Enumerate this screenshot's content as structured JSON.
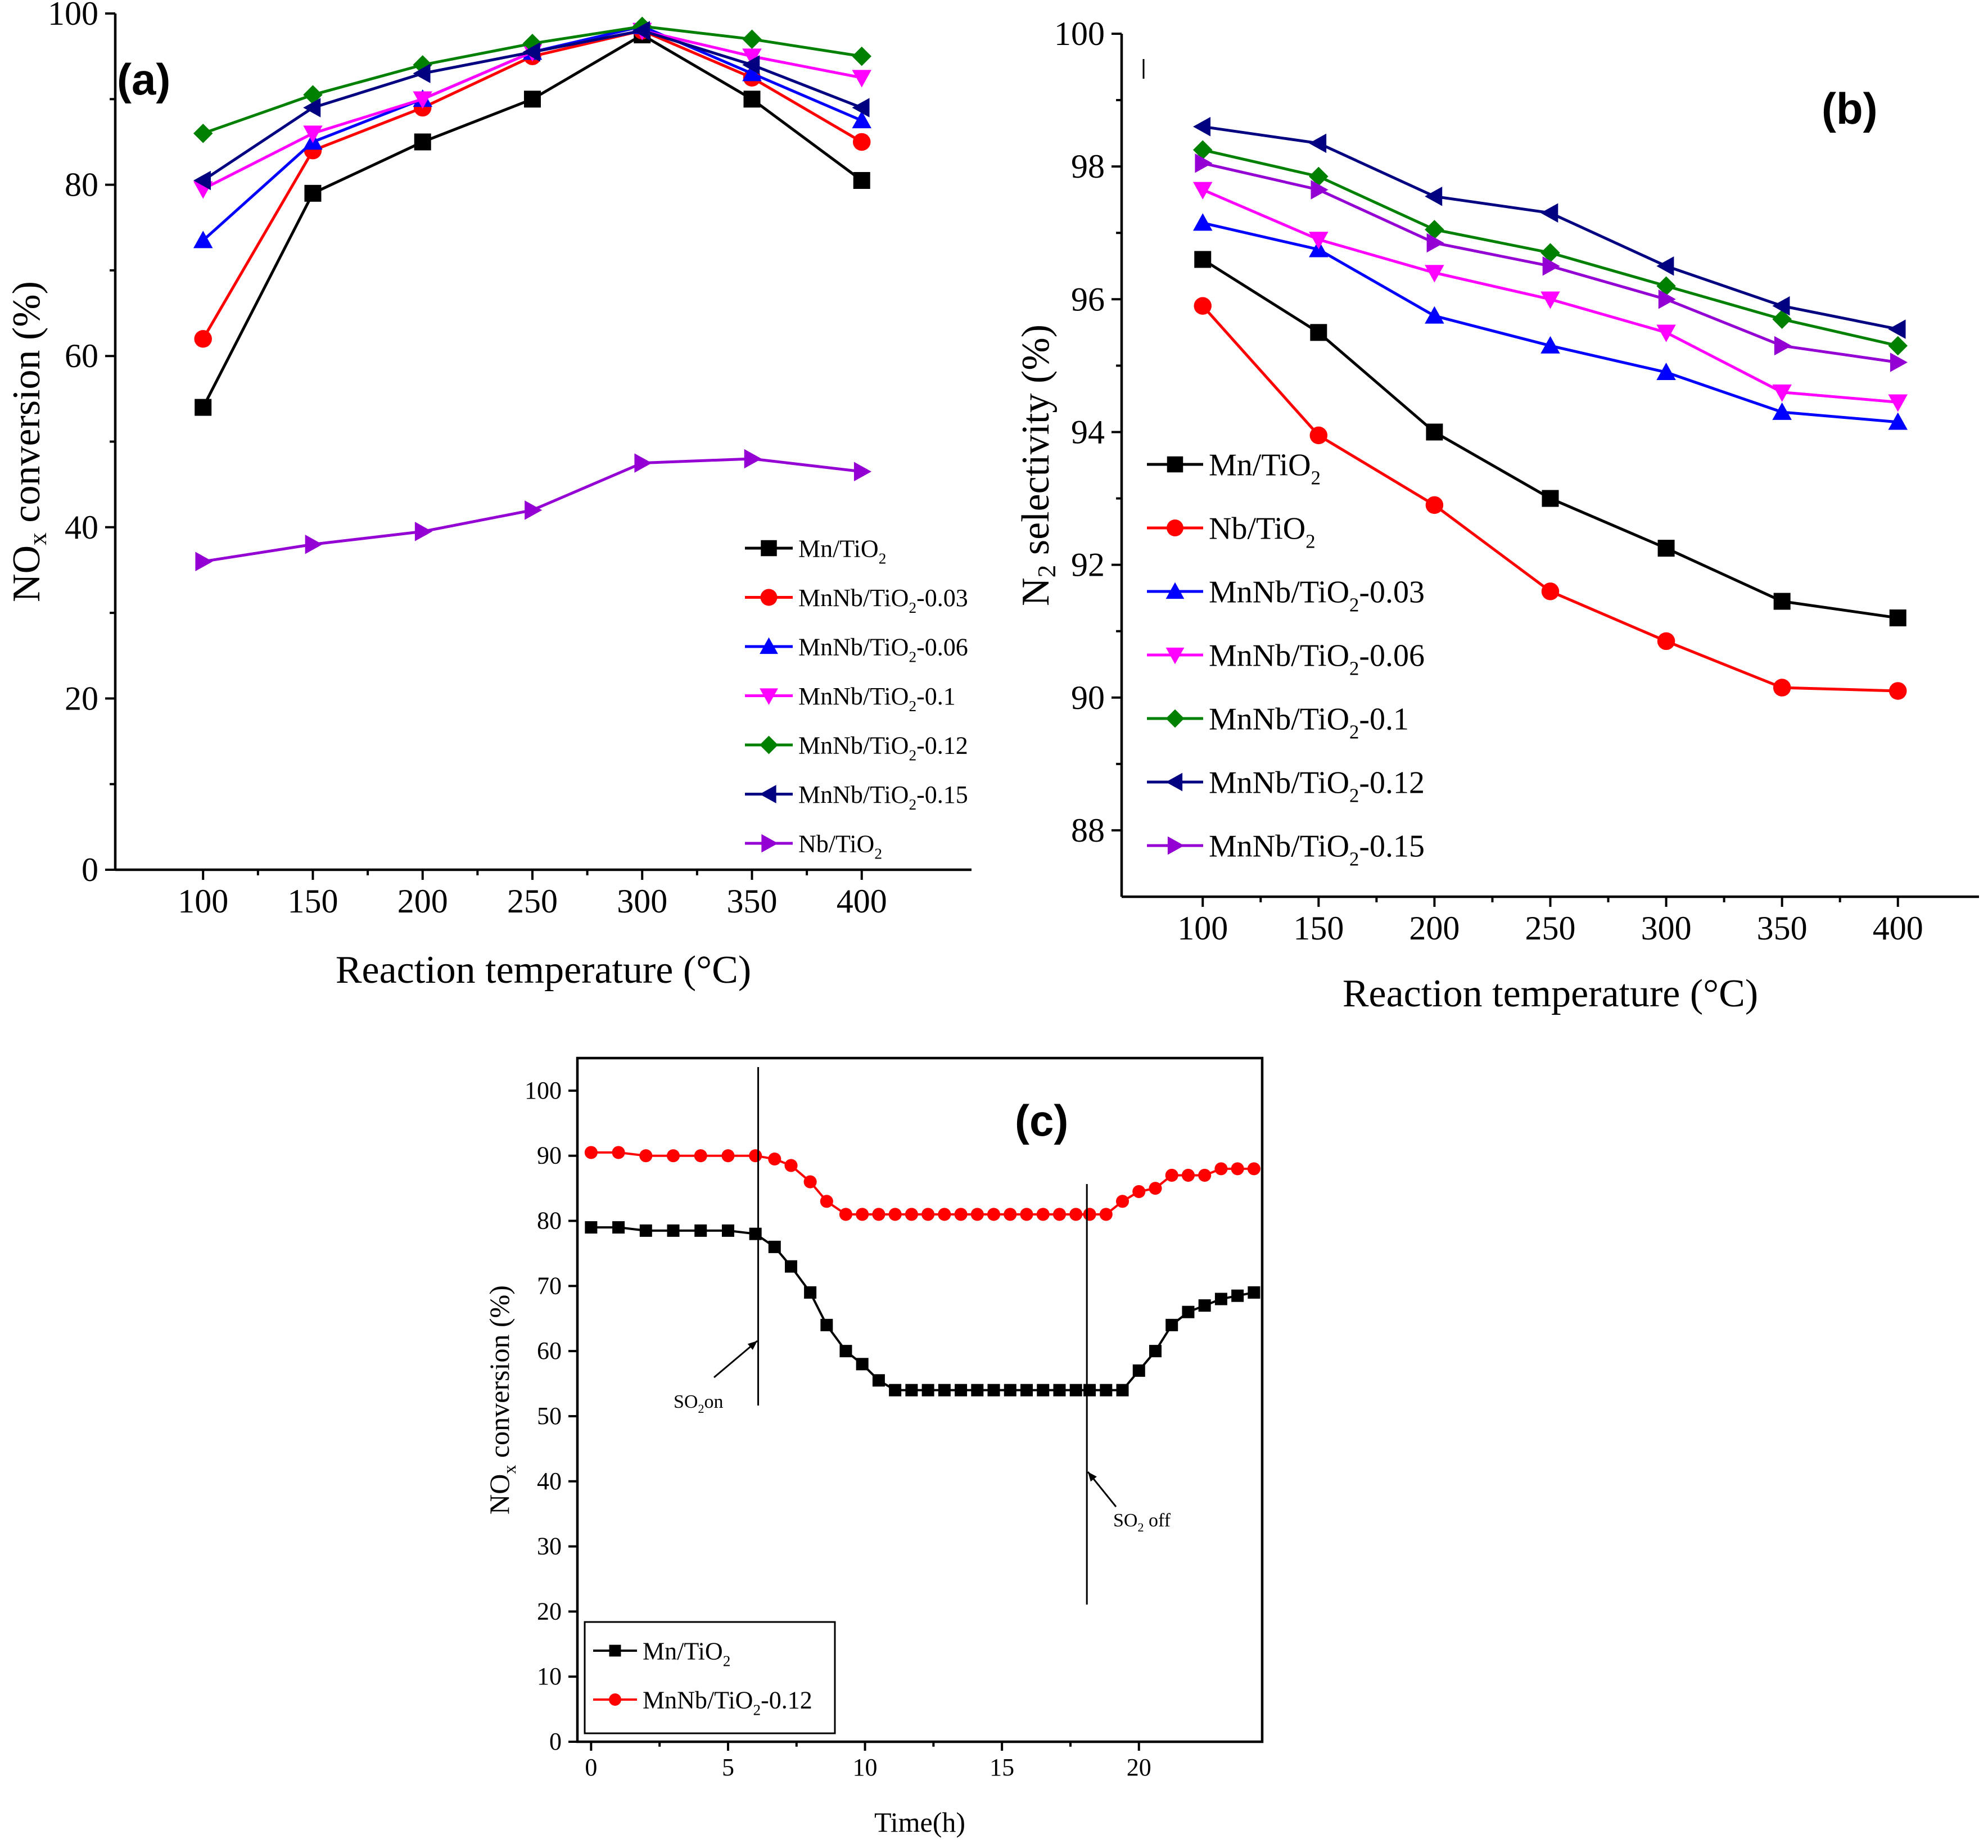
{
  "chart_data": [
    {
      "id": "a",
      "type": "line",
      "panel_label": "(a)",
      "xlabel": "Reaction temperature (°C)",
      "ylabel": "NOx conversion (%)",
      "xlim": [
        60,
        450
      ],
      "ylim": [
        0,
        100
      ],
      "xticks": [
        100,
        150,
        200,
        250,
        300,
        350,
        400
      ],
      "yticks": [
        0,
        20,
        40,
        60,
        80,
        100
      ],
      "x": [
        100,
        150,
        200,
        250,
        300,
        350,
        400
      ],
      "series": [
        {
          "name": "Mn/TiO2",
          "label": "Mn/TiO",
          "sub": "2",
          "suffix": "",
          "color": "#000000",
          "marker": "square",
          "values": [
            54,
            79,
            85,
            90,
            97.5,
            90,
            80.5
          ]
        },
        {
          "name": "MnNb/TiO2-0.03",
          "label": "MnNb/TiO",
          "sub": "2",
          "suffix": "-0.03",
          "color": "#ff0000",
          "marker": "circle",
          "values": [
            62,
            84,
            89,
            95,
            98,
            92.5,
            85
          ]
        },
        {
          "name": "MnNb/TiO2-0.06",
          "label": "MnNb/TiO",
          "sub": "2",
          "suffix": "-0.06",
          "color": "#0000ff",
          "marker": "triangle-up",
          "values": [
            73.5,
            85,
            90,
            95.5,
            98.5,
            93,
            87.5
          ]
        },
        {
          "name": "MnNb/TiO2-0.1",
          "label": "MnNb/TiO",
          "sub": "2",
          "suffix": "-0.1",
          "color": "#ff00ff",
          "marker": "triangle-down",
          "values": [
            79.5,
            86,
            90,
            95.5,
            98,
            95,
            92.5
          ]
        },
        {
          "name": "MnNb/TiO2-0.12",
          "label": "MnNb/TiO",
          "sub": "2",
          "suffix": "-0.12",
          "color": "#008000",
          "marker": "diamond",
          "values": [
            86,
            90.5,
            94,
            96.5,
            98.5,
            97,
            95
          ]
        },
        {
          "name": "MnNb/TiO2-0.15",
          "label": "MnNb/TiO",
          "sub": "2",
          "suffix": "-0.15",
          "color": "#000080",
          "marker": "triangle-left",
          "values": [
            80.5,
            89,
            93,
            95.5,
            98,
            94,
            89
          ]
        },
        {
          "name": "Nb/TiO2",
          "label": "Nb/TiO",
          "sub": "2",
          "suffix": "",
          "color": "#9400d3",
          "marker": "triangle-right",
          "values": [
            36,
            38,
            39.5,
            42,
            47.5,
            48,
            46.5
          ]
        }
      ]
    },
    {
      "id": "b",
      "type": "line",
      "panel_label": "(b)",
      "xlabel": "Reaction temperature (°C)",
      "ylabel": "N2 selectivity (%)",
      "xlim": [
        65,
        435
      ],
      "ylim": [
        87,
        100
      ],
      "xticks": [
        100,
        150,
        200,
        250,
        300,
        350,
        400
      ],
      "yticks": [
        88,
        90,
        92,
        94,
        96,
        98,
        100
      ],
      "x": [
        100,
        150,
        200,
        250,
        300,
        350,
        400
      ],
      "series": [
        {
          "name": "Mn/TiO2",
          "label": "Mn/TiO",
          "sub": "2",
          "suffix": "",
          "color": "#000000",
          "marker": "square",
          "values": [
            96.6,
            95.5,
            94.0,
            93.0,
            92.25,
            91.45,
            91.2
          ]
        },
        {
          "name": "Nb/TiO2",
          "label": "Nb/TiO",
          "sub": "2",
          "suffix": "",
          "color": "#ff0000",
          "marker": "circle",
          "values": [
            95.9,
            93.95,
            92.9,
            91.6,
            90.85,
            90.15,
            90.1
          ]
        },
        {
          "name": "MnNb/TiO2-0.03",
          "label": "MnNb/TiO",
          "sub": "2",
          "suffix": "-0.03",
          "color": "#0000ff",
          "marker": "triangle-up",
          "values": [
            97.15,
            96.75,
            95.75,
            95.3,
            94.9,
            94.3,
            94.15
          ]
        },
        {
          "name": "MnNb/TiO2-0.06",
          "label": "MnNb/TiO",
          "sub": "2",
          "suffix": "-0.06",
          "color": "#ff00ff",
          "marker": "triangle-down",
          "values": [
            97.65,
            96.9,
            96.4,
            96.0,
            95.5,
            94.6,
            94.45
          ]
        },
        {
          "name": "MnNb/TiO2-0.1",
          "label": "MnNb/TiO",
          "sub": "2",
          "suffix": "-0.1",
          "color": "#008000",
          "marker": "diamond",
          "values": [
            98.25,
            97.85,
            97.05,
            96.7,
            96.2,
            95.7,
            95.3
          ]
        },
        {
          "name": "MnNb/TiO2-0.12",
          "label": "MnNb/TiO",
          "sub": "2",
          "suffix": "-0.12",
          "color": "#000080",
          "marker": "triangle-left",
          "values": [
            98.6,
            98.35,
            97.55,
            97.3,
            96.5,
            95.9,
            95.55
          ]
        },
        {
          "name": "MnNb/TiO2-0.15",
          "label": "MnNb/TiO",
          "sub": "2",
          "suffix": "-0.15",
          "color": "#9400d3",
          "marker": "triangle-right",
          "values": [
            98.05,
            97.65,
            96.85,
            96.5,
            96.0,
            95.3,
            95.05
          ]
        }
      ]
    },
    {
      "id": "c",
      "type": "line",
      "panel_label": "(c)",
      "xlabel": "Time(h)",
      "ylabel": "NOx conversion (%)",
      "xlim": [
        -0.5,
        24.5
      ],
      "ylim": [
        0,
        105
      ],
      "xticks": [
        0,
        5,
        10,
        15,
        20
      ],
      "yticks": [
        0,
        10,
        20,
        30,
        40,
        50,
        60,
        70,
        80,
        90,
        100
      ],
      "annotations": [
        {
          "text_main": "SO",
          "text_sub": "2",
          "text_suffix": "on",
          "x_at": 6.1
        },
        {
          "text_main": "SO",
          "text_sub": "2",
          "text_suffix": " off",
          "x_at": 18.1
        }
      ],
      "series": [
        {
          "name": "Mn/TiO2",
          "label": "Mn/TiO",
          "sub": "2",
          "suffix": "",
          "color": "#000000",
          "marker": "square",
          "x": [
            0,
            1,
            2,
            3,
            4,
            5,
            6,
            6.7,
            7.3,
            8,
            8.6,
            9.3,
            9.9,
            10.5,
            11.1,
            11.7,
            12.3,
            12.9,
            13.5,
            14.1,
            14.7,
            15.3,
            15.9,
            16.5,
            17.1,
            17.7,
            18.2,
            18.8,
            19.4,
            20,
            20.6,
            21.2,
            21.8,
            22.4,
            23,
            23.6,
            24.2
          ],
          "values": [
            79,
            79,
            78.5,
            78.5,
            78.5,
            78.5,
            78,
            76,
            73,
            69,
            64,
            60,
            58,
            55.5,
            54,
            54,
            54,
            54,
            54,
            54,
            54,
            54,
            54,
            54,
            54,
            54,
            54,
            54,
            54,
            57,
            60,
            64,
            66,
            67,
            68,
            68.5,
            69
          ]
        },
        {
          "name": "MnNb/TiO2-0.12",
          "label": "MnNb/TiO",
          "sub": "2",
          "suffix": "-0.12",
          "color": "#ff0000",
          "marker": "circle",
          "x": [
            0,
            1,
            2,
            3,
            4,
            5,
            6,
            6.7,
            7.3,
            8,
            8.6,
            9.3,
            9.9,
            10.5,
            11.1,
            11.7,
            12.3,
            12.9,
            13.5,
            14.1,
            14.7,
            15.3,
            15.9,
            16.5,
            17.1,
            17.7,
            18.2,
            18.8,
            19.4,
            20,
            20.6,
            21.2,
            21.8,
            22.4,
            23,
            23.6,
            24.2
          ],
          "values": [
            90.5,
            90.5,
            90,
            90,
            90,
            90,
            90,
            89.5,
            88.5,
            86,
            83,
            81,
            81,
            81,
            81,
            81,
            81,
            81,
            81,
            81,
            81,
            81,
            81,
            81,
            81,
            81,
            81,
            81,
            83,
            84.5,
            85,
            87,
            87,
            87,
            88,
            88,
            88
          ]
        }
      ]
    }
  ]
}
